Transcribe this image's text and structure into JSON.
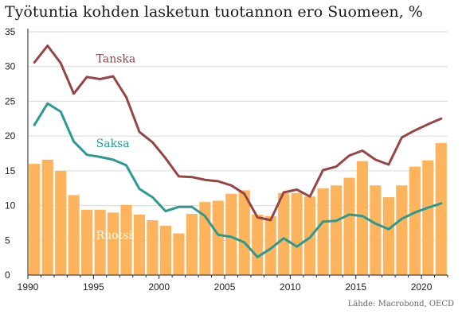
{
  "title": "Työtuntia kohden lasketun tuotannon ero Suomeen, %",
  "source": "Lähde: Macrobond, OECD",
  "chart_data": {
    "type": "bar+line",
    "title": "Työtuntia kohden lasketun tuotannon ero Suomeen, %",
    "xlabel": "",
    "ylabel": "",
    "xlim": [
      1990,
      2022
    ],
    "ylim": [
      0,
      35
    ],
    "x_ticks": [
      1990,
      1995,
      2000,
      2005,
      2010,
      2015,
      2020
    ],
    "y_ticks": [
      0,
      5,
      10,
      15,
      20,
      25,
      30,
      35
    ],
    "grid": "horizontal",
    "years": [
      1990,
      1991,
      1992,
      1993,
      1994,
      1995,
      1996,
      1997,
      1998,
      1999,
      2000,
      2001,
      2002,
      2003,
      2004,
      2005,
      2006,
      2007,
      2008,
      2009,
      2010,
      2011,
      2012,
      2013,
      2014,
      2015,
      2016,
      2017,
      2018,
      2019,
      2020,
      2021
    ],
    "series": [
      {
        "name": "Ruotsi",
        "kind": "bar",
        "color": "#fdb45c",
        "values": [
          16.0,
          16.6,
          15.0,
          11.5,
          9.4,
          9.4,
          9.0,
          10.1,
          8.7,
          7.9,
          7.1,
          6.0,
          8.8,
          10.5,
          10.7,
          11.7,
          12.2,
          8.7,
          8.5,
          11.8,
          11.8,
          11.3,
          12.5,
          12.9,
          14.0,
          16.4,
          12.9,
          11.2,
          12.9,
          15.6,
          16.5,
          19.0
        ]
      },
      {
        "name": "Tanska",
        "kind": "line",
        "color": "#954545",
        "values": [
          30.6,
          33.0,
          30.5,
          26.1,
          28.5,
          28.2,
          28.6,
          25.6,
          20.6,
          19.1,
          16.8,
          14.2,
          14.1,
          13.7,
          13.5,
          12.9,
          11.7,
          8.3,
          7.9,
          11.9,
          12.3,
          11.3,
          15.1,
          15.6,
          17.2,
          17.9,
          16.6,
          15.9,
          19.8,
          20.8,
          21.7,
          22.5
        ]
      },
      {
        "name": "Saksa",
        "kind": "line",
        "color": "#2b9a90",
        "values": [
          21.6,
          24.7,
          23.5,
          19.2,
          17.3,
          17.0,
          16.6,
          15.8,
          12.4,
          11.2,
          9.2,
          9.8,
          9.8,
          8.5,
          5.8,
          5.5,
          4.7,
          2.6,
          3.8,
          5.3,
          4.1,
          5.4,
          7.7,
          7.8,
          8.7,
          8.5,
          7.4,
          6.6,
          8.1,
          9.0,
          9.7,
          10.3
        ]
      }
    ],
    "series_labels": [
      {
        "name": "Tanska",
        "text": "Tanska",
        "color": "#954545",
        "at_year": 1995,
        "at_value": 30.6
      },
      {
        "name": "Saksa",
        "text": "Saksa",
        "color": "#2b9a90",
        "at_year": 1995,
        "at_value": 18.4
      },
      {
        "name": "Ruotsi",
        "text": "Ruotsi",
        "color": "#ffffff",
        "at_year": 1995,
        "at_value": 5.2
      }
    ]
  }
}
